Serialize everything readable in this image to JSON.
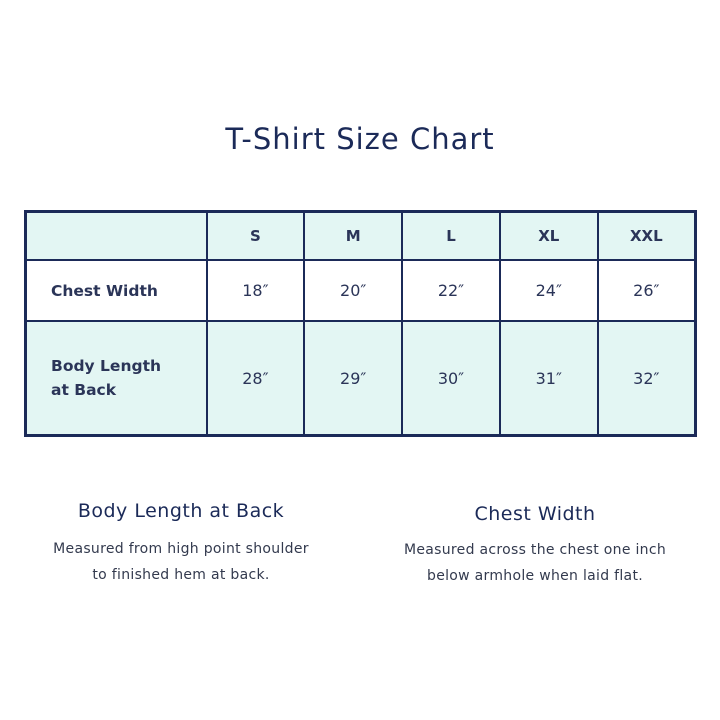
{
  "title": "T-Shirt Size Chart",
  "table": {
    "headers": [
      "",
      "S",
      "M",
      "L",
      "XL",
      "XXL"
    ],
    "rows": [
      {
        "label": "Chest Width",
        "values": [
          "18″",
          "20″",
          "22″",
          "24″",
          "26″"
        ]
      },
      {
        "label_line1": "Body Length",
        "label_line2": "at Back",
        "values": [
          "28″",
          "29″",
          "30″",
          "31″",
          "32″"
        ]
      }
    ]
  },
  "sections": [
    {
      "heading": "Body Length at Back",
      "line1": "Measured from high point shoulder",
      "line2": "to finished hem at back."
    },
    {
      "heading": "Chest Width",
      "line1": "Measured across the chest one inch",
      "line2": "below armhole when laid flat."
    }
  ],
  "colors": {
    "navy": "#1b2a58",
    "mint": "#e3f6f3"
  }
}
